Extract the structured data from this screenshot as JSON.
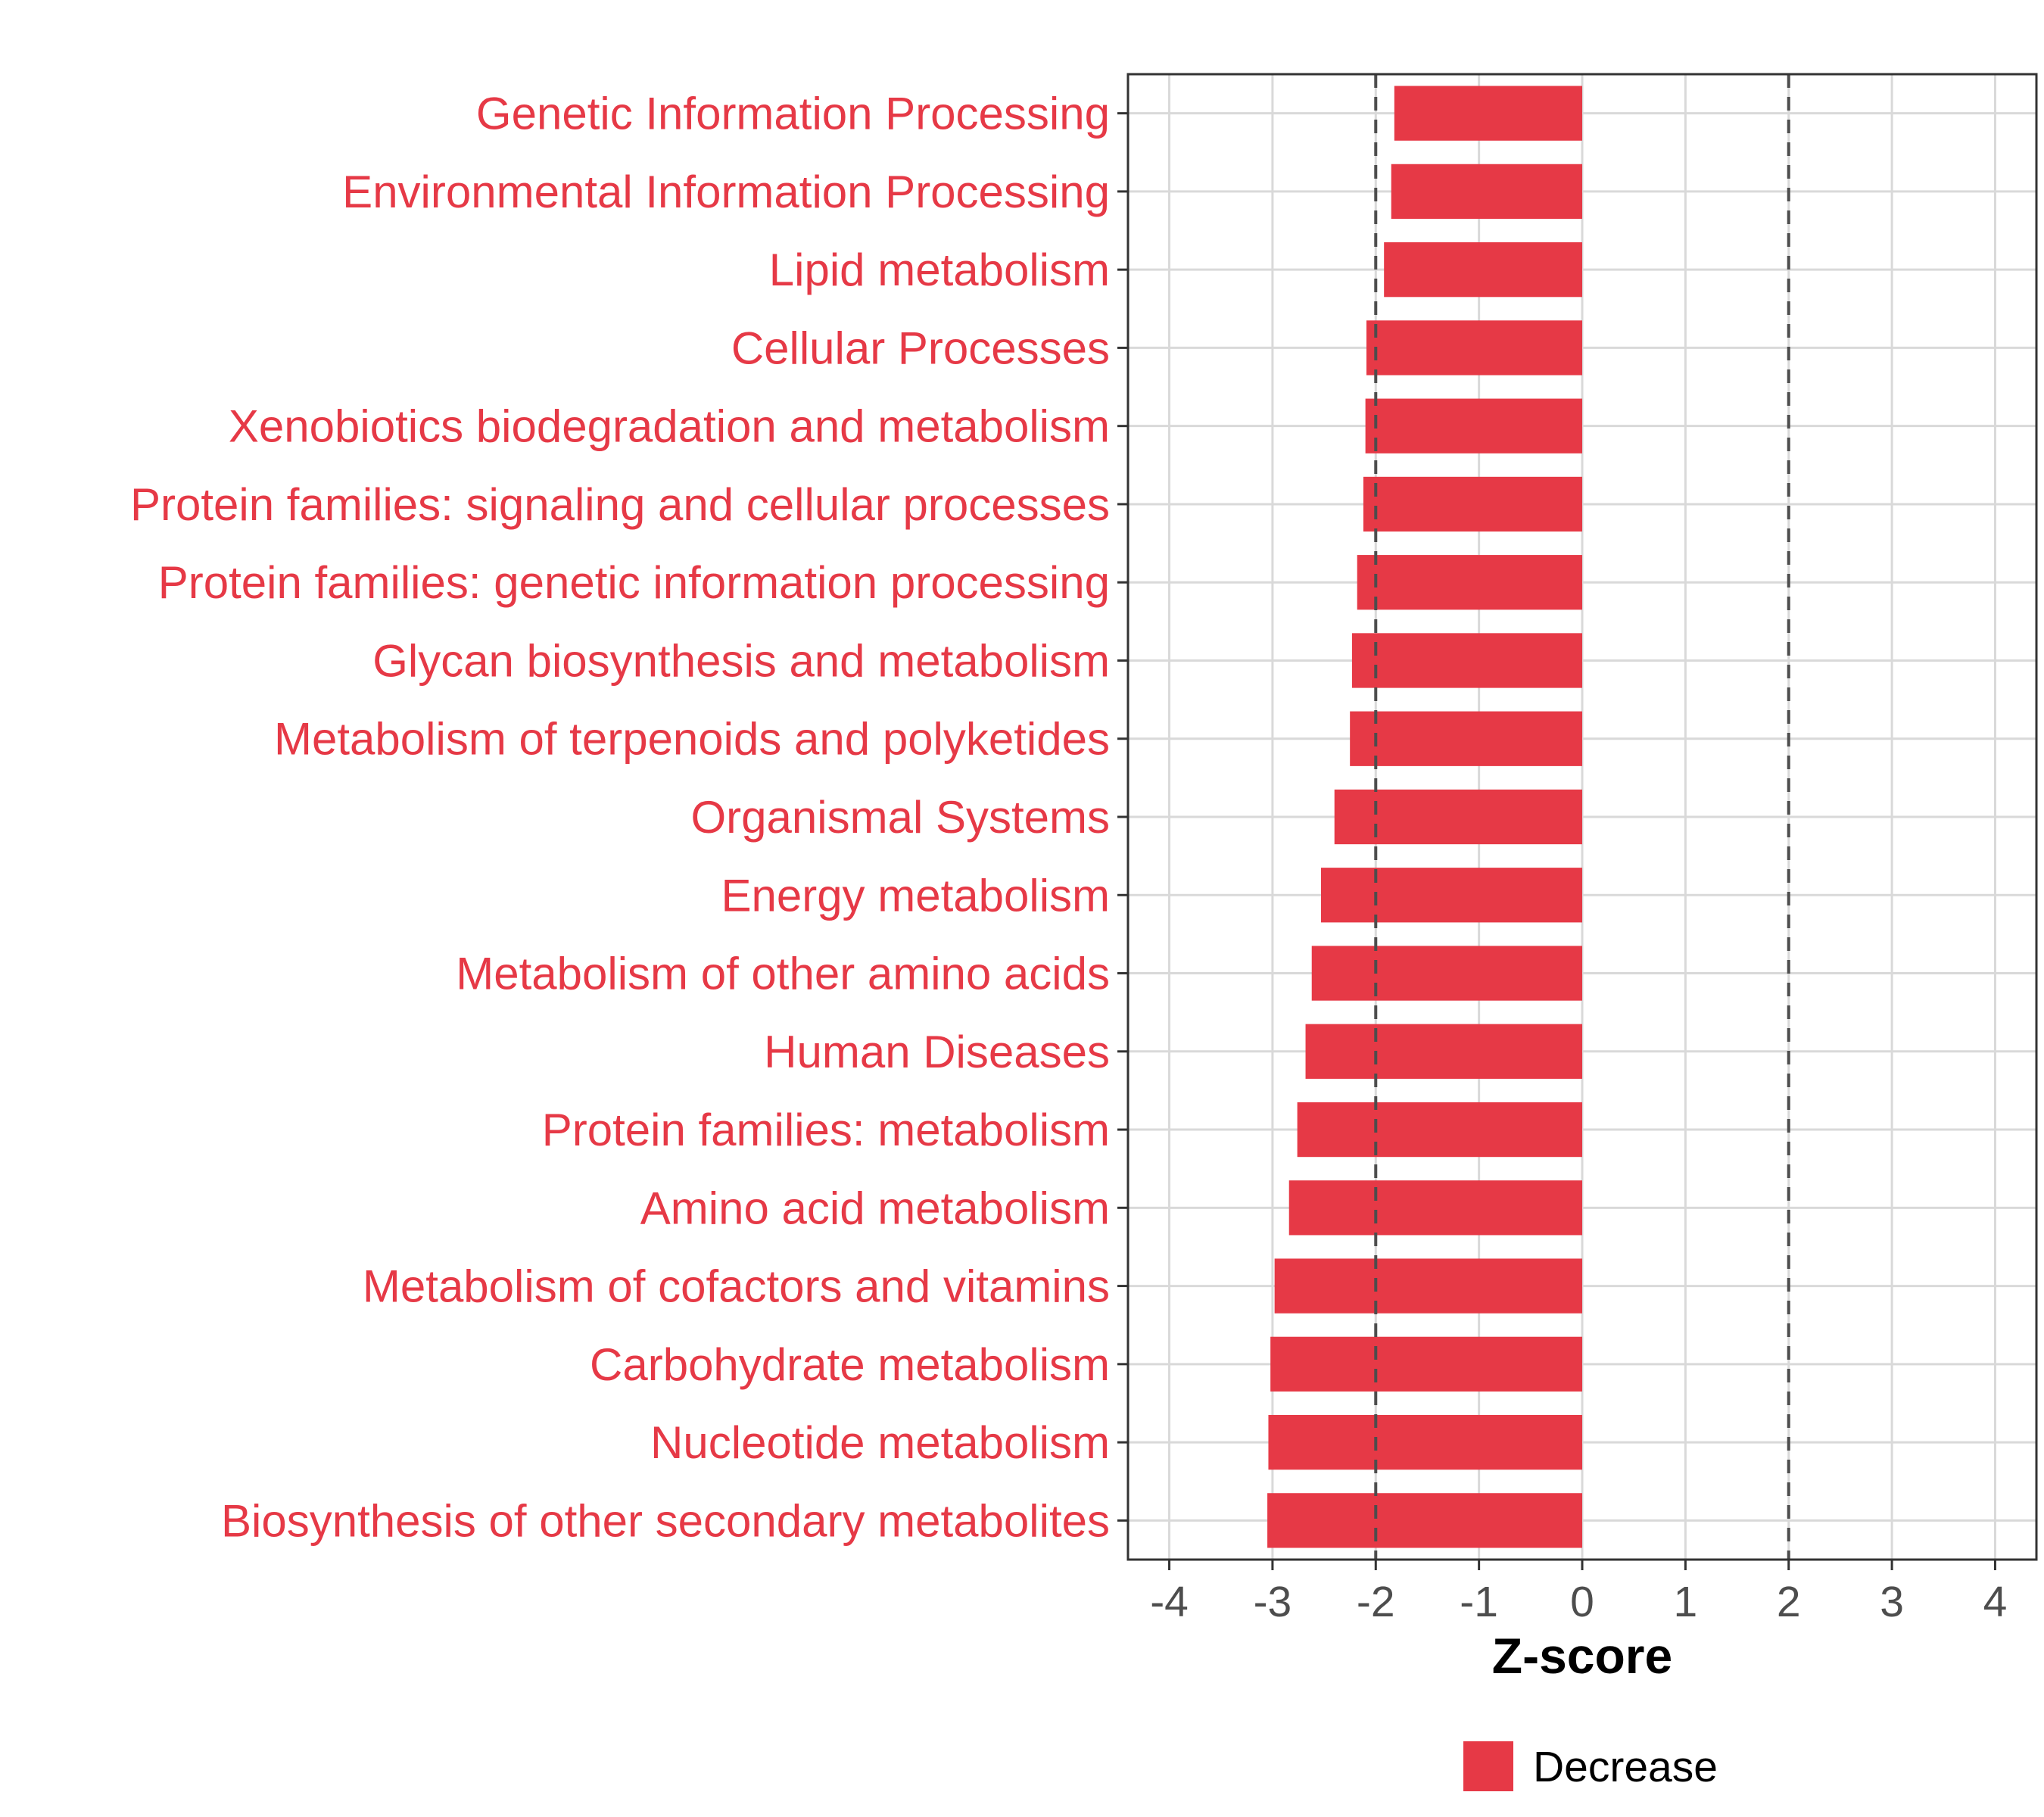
{
  "chart_data": {
    "type": "bar",
    "orientation": "horizontal",
    "categories": [
      "Genetic Information Processing",
      "Environmental Information Processing",
      "Lipid metabolism",
      "Cellular Processes",
      "Xenobiotics biodegradation and metabolism",
      "Protein families: signaling and cellular processes",
      "Protein families: genetic information processing",
      "Glycan biosynthesis and metabolism",
      "Metabolism of terpenoids and polyketides",
      "Organismal Systems",
      "Energy metabolism",
      "Metabolism of other amino acids",
      "Human Diseases",
      "Protein families: metabolism",
      "Amino acid metabolism",
      "Metabolism of cofactors and vitamins",
      "Carbohydrate metabolism",
      "Nucleotide metabolism",
      "Biosynthesis of other secondary metabolites"
    ],
    "values": [
      -1.82,
      -1.85,
      -1.92,
      -2.09,
      -2.1,
      -2.12,
      -2.18,
      -2.23,
      -2.25,
      -2.4,
      -2.53,
      -2.62,
      -2.68,
      -2.76,
      -2.84,
      -2.98,
      -3.02,
      -3.04,
      -3.05
    ],
    "xlabel": "Z-score",
    "ylabel": "",
    "xlim": [
      -4.4,
      4.4
    ],
    "xticks": [
      -4,
      -3,
      -2,
      -1,
      0,
      1,
      2,
      3,
      4
    ],
    "xtick_labels": [
      "-4",
      "-3",
      "-2",
      "-1",
      "0",
      "1",
      "2",
      "3",
      "4"
    ],
    "reference_lines": [
      -2,
      2
    ],
    "grid": true,
    "legend": {
      "position": "bottom",
      "entries": [
        {
          "label": "Decrease",
          "color": "#e63946"
        }
      ]
    },
    "colors": {
      "bar": "#e63946",
      "label": "#e63946",
      "grid": "#d9d9d9",
      "reference_line": "#4d4d4d"
    }
  }
}
